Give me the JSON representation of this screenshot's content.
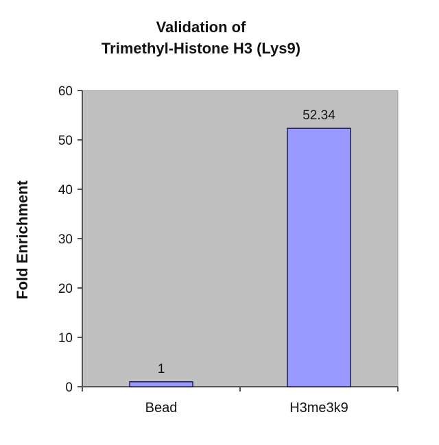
{
  "chart_data": {
    "type": "bar",
    "title_lines": [
      "Validation of",
      "Trimethyl-Histone H3 (Lys9)"
    ],
    "xlabel": "",
    "ylabel": "Fold Enrichment",
    "categories": [
      "Bead",
      "H3me3k9"
    ],
    "values": [
      1,
      52.34
    ],
    "data_labels": [
      "1",
      "52.34"
    ],
    "ylim": [
      0,
      60
    ],
    "yticks": [
      0,
      10,
      20,
      30,
      40,
      50,
      60
    ],
    "grid": false,
    "legend": "none",
    "colors": {
      "plot_background": "#c0c0c0",
      "bar_fill": "#9999ff",
      "bar_stroke": "#1a1a4a",
      "axis": "#555555"
    }
  }
}
